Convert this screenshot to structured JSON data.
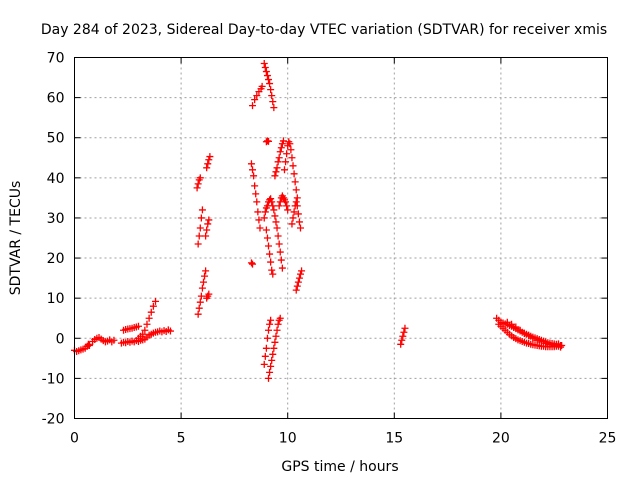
{
  "chart_data": {
    "type": "scatter",
    "title": "Day 284 of 2023, Sidereal Day-to-day VTEC variation (SDTVAR) for receiver xmis",
    "xlabel": "GPS time / hours",
    "ylabel": "SDTVAR / TECUs",
    "xlim": [
      0,
      25
    ],
    "ylim": [
      -20,
      70
    ],
    "xticks": [
      0,
      5,
      10,
      15,
      20,
      25
    ],
    "yticks": [
      -20,
      -10,
      0,
      10,
      20,
      30,
      40,
      50,
      60,
      70
    ],
    "grid": true,
    "marker": "plus",
    "color": "#ff0000",
    "series": [
      {
        "points": [
          [
            0.0,
            -3.0
          ],
          [
            0.1,
            -3.3
          ],
          [
            0.2,
            -3.1
          ],
          [
            0.3,
            -2.9
          ],
          [
            0.4,
            -2.7
          ],
          [
            0.5,
            -2.5
          ],
          [
            0.6,
            -2.0
          ],
          [
            0.65,
            -1.5
          ],
          [
            0.7,
            -1.8
          ]
        ]
      },
      {
        "points": [
          [
            0.85,
            -0.8
          ],
          [
            0.95,
            -0.3
          ],
          [
            1.05,
            0.0
          ],
          [
            1.15,
            0.2
          ],
          [
            1.25,
            -0.2
          ],
          [
            1.35,
            -0.6
          ],
          [
            1.45,
            -0.9
          ],
          [
            1.55,
            -0.7
          ],
          [
            1.65,
            -0.4
          ],
          [
            1.75,
            -0.9
          ],
          [
            1.85,
            -0.5
          ]
        ]
      },
      {
        "points": [
          [
            2.3,
            2.0
          ],
          [
            2.4,
            2.2
          ],
          [
            2.5,
            2.3
          ],
          [
            2.6,
            2.4
          ],
          [
            2.7,
            2.5
          ],
          [
            2.8,
            2.7
          ],
          [
            2.9,
            2.8
          ],
          [
            3.0,
            3.0
          ]
        ]
      },
      {
        "points": [
          [
            2.2,
            -1.2
          ],
          [
            2.3,
            -1.0
          ],
          [
            2.4,
            -1.1
          ],
          [
            2.5,
            -0.8
          ],
          [
            2.6,
            -1.0
          ],
          [
            2.7,
            -0.7
          ],
          [
            2.8,
            -0.9
          ],
          [
            2.9,
            -0.6
          ],
          [
            3.0,
            -0.8
          ],
          [
            3.1,
            -0.5
          ],
          [
            3.2,
            -0.4
          ]
        ]
      },
      {
        "points": [
          [
            3.0,
            0.0
          ],
          [
            3.1,
            0.5
          ],
          [
            3.2,
            1.0
          ],
          [
            3.3,
            2.0
          ],
          [
            3.4,
            3.5
          ],
          [
            3.5,
            5.0
          ],
          [
            3.6,
            6.5
          ],
          [
            3.7,
            8.0
          ],
          [
            3.8,
            9.2
          ]
        ]
      },
      {
        "points": [
          [
            3.3,
            -0.2
          ],
          [
            3.4,
            0.3
          ],
          [
            3.5,
            0.8
          ],
          [
            3.6,
            1.0
          ],
          [
            3.7,
            1.3
          ],
          [
            3.8,
            1.5
          ],
          [
            3.9,
            1.6
          ],
          [
            4.0,
            1.8
          ],
          [
            4.1,
            1.6
          ],
          [
            4.2,
            1.9
          ],
          [
            4.3,
            1.7
          ],
          [
            4.4,
            2.1
          ],
          [
            4.5,
            1.8
          ]
        ]
      },
      {
        "points": [
          [
            5.75,
            37.5
          ],
          [
            5.8,
            38.5
          ],
          [
            5.85,
            39.5
          ],
          [
            5.9,
            40.0
          ],
          [
            6.2,
            42.5
          ],
          [
            6.25,
            43.5
          ],
          [
            6.3,
            44.5
          ],
          [
            6.35,
            45.3
          ]
        ]
      },
      {
        "points": [
          [
            5.8,
            23.5
          ],
          [
            5.85,
            25.5
          ],
          [
            5.9,
            27.5
          ],
          [
            5.95,
            30.0
          ],
          [
            6.0,
            32.0
          ],
          [
            6.15,
            25.5
          ],
          [
            6.2,
            27.0
          ],
          [
            6.25,
            28.5
          ],
          [
            6.3,
            29.5
          ]
        ]
      },
      {
        "points": [
          [
            5.8,
            6.0
          ],
          [
            5.85,
            7.5
          ],
          [
            5.9,
            9.0
          ],
          [
            5.95,
            10.5
          ],
          [
            6.0,
            12.5
          ],
          [
            6.05,
            14.0
          ],
          [
            6.1,
            15.5
          ],
          [
            6.15,
            16.8
          ],
          [
            6.2,
            10.0
          ],
          [
            6.25,
            10.5
          ],
          [
            6.3,
            11.0
          ]
        ]
      },
      {
        "points": [
          [
            8.3,
            43.5
          ],
          [
            8.35,
            42.0
          ],
          [
            8.4,
            40.5
          ],
          [
            8.45,
            38.0
          ],
          [
            8.5,
            36.0
          ],
          [
            8.55,
            34.0
          ],
          [
            8.6,
            31.5
          ],
          [
            8.65,
            29.5
          ],
          [
            8.7,
            27.5
          ]
        ]
      },
      {
        "points": [
          [
            8.35,
            58.0
          ],
          [
            8.45,
            59.5
          ],
          [
            8.55,
            60.5
          ],
          [
            8.65,
            61.5
          ],
          [
            8.75,
            62.2
          ],
          [
            8.8,
            62.8
          ]
        ]
      },
      {
        "points": [
          [
            8.3,
            18.8
          ],
          [
            8.35,
            18.5
          ]
        ]
      },
      {
        "points": [
          [
            8.9,
            68.5
          ],
          [
            8.95,
            67.5
          ],
          [
            9.0,
            66.5
          ],
          [
            9.05,
            65.5
          ],
          [
            9.1,
            64.5
          ],
          [
            9.15,
            63.5
          ],
          [
            9.2,
            62.0
          ],
          [
            9.25,
            60.5
          ],
          [
            9.3,
            59.0
          ],
          [
            9.35,
            57.5
          ]
        ]
      },
      {
        "points": [
          [
            9.0,
            49.0
          ],
          [
            9.05,
            49.2
          ],
          [
            9.1,
            49.1
          ]
        ]
      },
      {
        "points": [
          [
            8.9,
            30.0
          ],
          [
            8.95,
            31.5
          ],
          [
            9.0,
            32.5
          ],
          [
            9.05,
            33.0
          ],
          [
            9.1,
            34.0
          ],
          [
            9.15,
            34.5
          ],
          [
            9.2,
            34.8
          ],
          [
            9.25,
            34.0
          ],
          [
            9.3,
            33.0
          ],
          [
            9.35,
            32.0
          ],
          [
            9.4,
            30.5
          ],
          [
            9.45,
            29.0
          ],
          [
            9.5,
            27.5
          ],
          [
            9.55,
            25.5
          ],
          [
            9.6,
            23.5
          ],
          [
            9.65,
            21.5
          ],
          [
            9.7,
            19.5
          ],
          [
            9.75,
            17.5
          ]
        ]
      },
      {
        "points": [
          [
            9.0,
            27.0
          ],
          [
            9.05,
            25.0
          ],
          [
            9.1,
            23.0
          ],
          [
            9.15,
            21.0
          ],
          [
            9.2,
            19.0
          ],
          [
            9.25,
            17.0
          ],
          [
            9.3,
            16.0
          ]
        ]
      },
      {
        "points": [
          [
            9.4,
            40.5
          ],
          [
            9.45,
            41.5
          ],
          [
            9.5,
            42.5
          ],
          [
            9.55,
            44.0
          ],
          [
            9.6,
            45.0
          ],
          [
            9.65,
            46.5
          ],
          [
            9.7,
            47.5
          ],
          [
            9.75,
            48.5
          ],
          [
            9.8,
            49.2
          ]
        ]
      },
      {
        "points": [
          [
            9.6,
            33.0
          ],
          [
            9.65,
            34.0
          ],
          [
            9.7,
            35.0
          ],
          [
            9.75,
            35.5
          ],
          [
            9.8,
            35.0
          ],
          [
            9.85,
            34.5
          ],
          [
            9.9,
            34.0
          ],
          [
            9.95,
            33.0
          ],
          [
            10.0,
            32.0
          ]
        ]
      },
      {
        "points": [
          [
            9.85,
            42.0
          ],
          [
            9.9,
            44.0
          ],
          [
            9.95,
            46.0
          ],
          [
            10.0,
            48.0
          ],
          [
            10.05,
            49.0
          ],
          [
            10.1,
            48.5
          ],
          [
            10.15,
            47.0
          ],
          [
            10.2,
            45.0
          ],
          [
            10.25,
            43.0
          ],
          [
            10.3,
            41.0
          ],
          [
            10.35,
            39.0
          ],
          [
            10.4,
            37.0
          ],
          [
            10.45,
            35.0
          ]
        ]
      },
      {
        "points": [
          [
            10.2,
            28.5
          ],
          [
            10.25,
            30.0
          ],
          [
            10.3,
            31.5
          ],
          [
            10.35,
            33.0
          ],
          [
            10.4,
            34.0
          ],
          [
            10.45,
            33.0
          ],
          [
            10.5,
            31.0
          ],
          [
            10.55,
            29.0
          ],
          [
            10.6,
            27.5
          ]
        ]
      },
      {
        "points": [
          [
            10.4,
            12.0
          ],
          [
            10.45,
            13.0
          ],
          [
            10.5,
            14.0
          ],
          [
            10.55,
            15.0
          ],
          [
            10.6,
            16.0
          ],
          [
            10.65,
            16.8
          ]
        ]
      },
      {
        "points": [
          [
            9.1,
            -10.0
          ],
          [
            9.15,
            -8.5
          ],
          [
            9.2,
            -7.0
          ],
          [
            9.25,
            -5.5
          ],
          [
            9.3,
            -4.0
          ],
          [
            9.35,
            -2.5
          ],
          [
            9.4,
            -1.0
          ],
          [
            9.45,
            0.5
          ],
          [
            9.5,
            2.0
          ],
          [
            9.55,
            3.5
          ],
          [
            9.6,
            4.5
          ],
          [
            9.65,
            5.0
          ]
        ]
      },
      {
        "points": [
          [
            8.9,
            -6.5
          ],
          [
            8.95,
            -4.5
          ],
          [
            9.0,
            -2.5
          ],
          [
            9.05,
            0.0
          ],
          [
            9.1,
            2.0
          ],
          [
            9.15,
            3.5
          ],
          [
            9.2,
            4.5
          ]
        ]
      },
      {
        "points": [
          [
            15.3,
            -1.5
          ],
          [
            15.35,
            -0.5
          ],
          [
            15.4,
            0.5
          ],
          [
            15.45,
            1.5
          ],
          [
            15.5,
            2.5
          ]
        ]
      },
      {
        "points": [
          [
            19.8,
            5.0
          ],
          [
            19.9,
            4.5
          ],
          [
            20.0,
            4.0
          ],
          [
            20.1,
            3.8
          ],
          [
            20.2,
            3.6
          ],
          [
            20.3,
            3.5
          ],
          [
            20.4,
            3.2
          ],
          [
            20.5,
            3.0
          ],
          [
            20.6,
            2.7
          ],
          [
            20.7,
            2.4
          ],
          [
            20.8,
            2.1
          ],
          [
            20.9,
            1.8
          ],
          [
            21.0,
            1.5
          ],
          [
            21.1,
            1.2
          ],
          [
            21.2,
            1.0
          ],
          [
            21.3,
            0.8
          ],
          [
            21.4,
            0.5
          ],
          [
            21.5,
            0.3
          ],
          [
            21.6,
            0.1
          ],
          [
            21.7,
            -0.1
          ],
          [
            21.8,
            -0.3
          ],
          [
            21.9,
            -0.5
          ],
          [
            22.0,
            -0.7
          ],
          [
            22.1,
            -0.9
          ],
          [
            22.2,
            -1.1
          ],
          [
            22.3,
            -1.2
          ],
          [
            22.4,
            -1.3
          ],
          [
            22.5,
            -1.4
          ],
          [
            22.6,
            -1.5
          ],
          [
            22.7,
            -1.6
          ],
          [
            22.8,
            -1.8
          ]
        ]
      },
      {
        "points": [
          [
            19.9,
            3.5
          ],
          [
            20.0,
            3.0
          ],
          [
            20.1,
            2.5
          ],
          [
            20.2,
            2.0
          ],
          [
            20.3,
            1.5
          ],
          [
            20.4,
            1.0
          ],
          [
            20.5,
            0.6
          ],
          [
            20.6,
            0.2
          ],
          [
            20.7,
            -0.1
          ],
          [
            20.8,
            -0.4
          ],
          [
            20.9,
            -0.6
          ],
          [
            21.0,
            -0.8
          ],
          [
            21.1,
            -1.0
          ],
          [
            21.2,
            -1.2
          ],
          [
            21.3,
            -1.3
          ],
          [
            21.4,
            -1.5
          ],
          [
            21.5,
            -1.6
          ],
          [
            21.6,
            -1.7
          ],
          [
            21.7,
            -1.8
          ],
          [
            21.8,
            -1.9
          ],
          [
            21.9,
            -2.0
          ],
          [
            22.0,
            -2.0
          ],
          [
            22.1,
            -2.1
          ],
          [
            22.2,
            -2.1
          ],
          [
            22.3,
            -2.1
          ],
          [
            22.4,
            -2.1
          ],
          [
            22.5,
            -2.1
          ],
          [
            22.6,
            -2.0
          ],
          [
            22.7,
            -2.0
          ],
          [
            22.8,
            -2.2
          ]
        ]
      },
      {
        "points": [
          [
            20.3,
            4.0
          ],
          [
            20.5,
            3.5
          ],
          [
            20.7,
            2.8
          ],
          [
            20.9,
            2.0
          ],
          [
            21.1,
            1.3
          ],
          [
            21.3,
            0.6
          ],
          [
            21.5,
            0.0
          ],
          [
            21.7,
            -0.5
          ],
          [
            21.9,
            -0.9
          ],
          [
            22.1,
            -1.3
          ],
          [
            22.3,
            -1.6
          ],
          [
            22.5,
            -1.8
          ],
          [
            22.7,
            -1.4
          ],
          [
            22.85,
            -1.8
          ]
        ]
      }
    ]
  }
}
